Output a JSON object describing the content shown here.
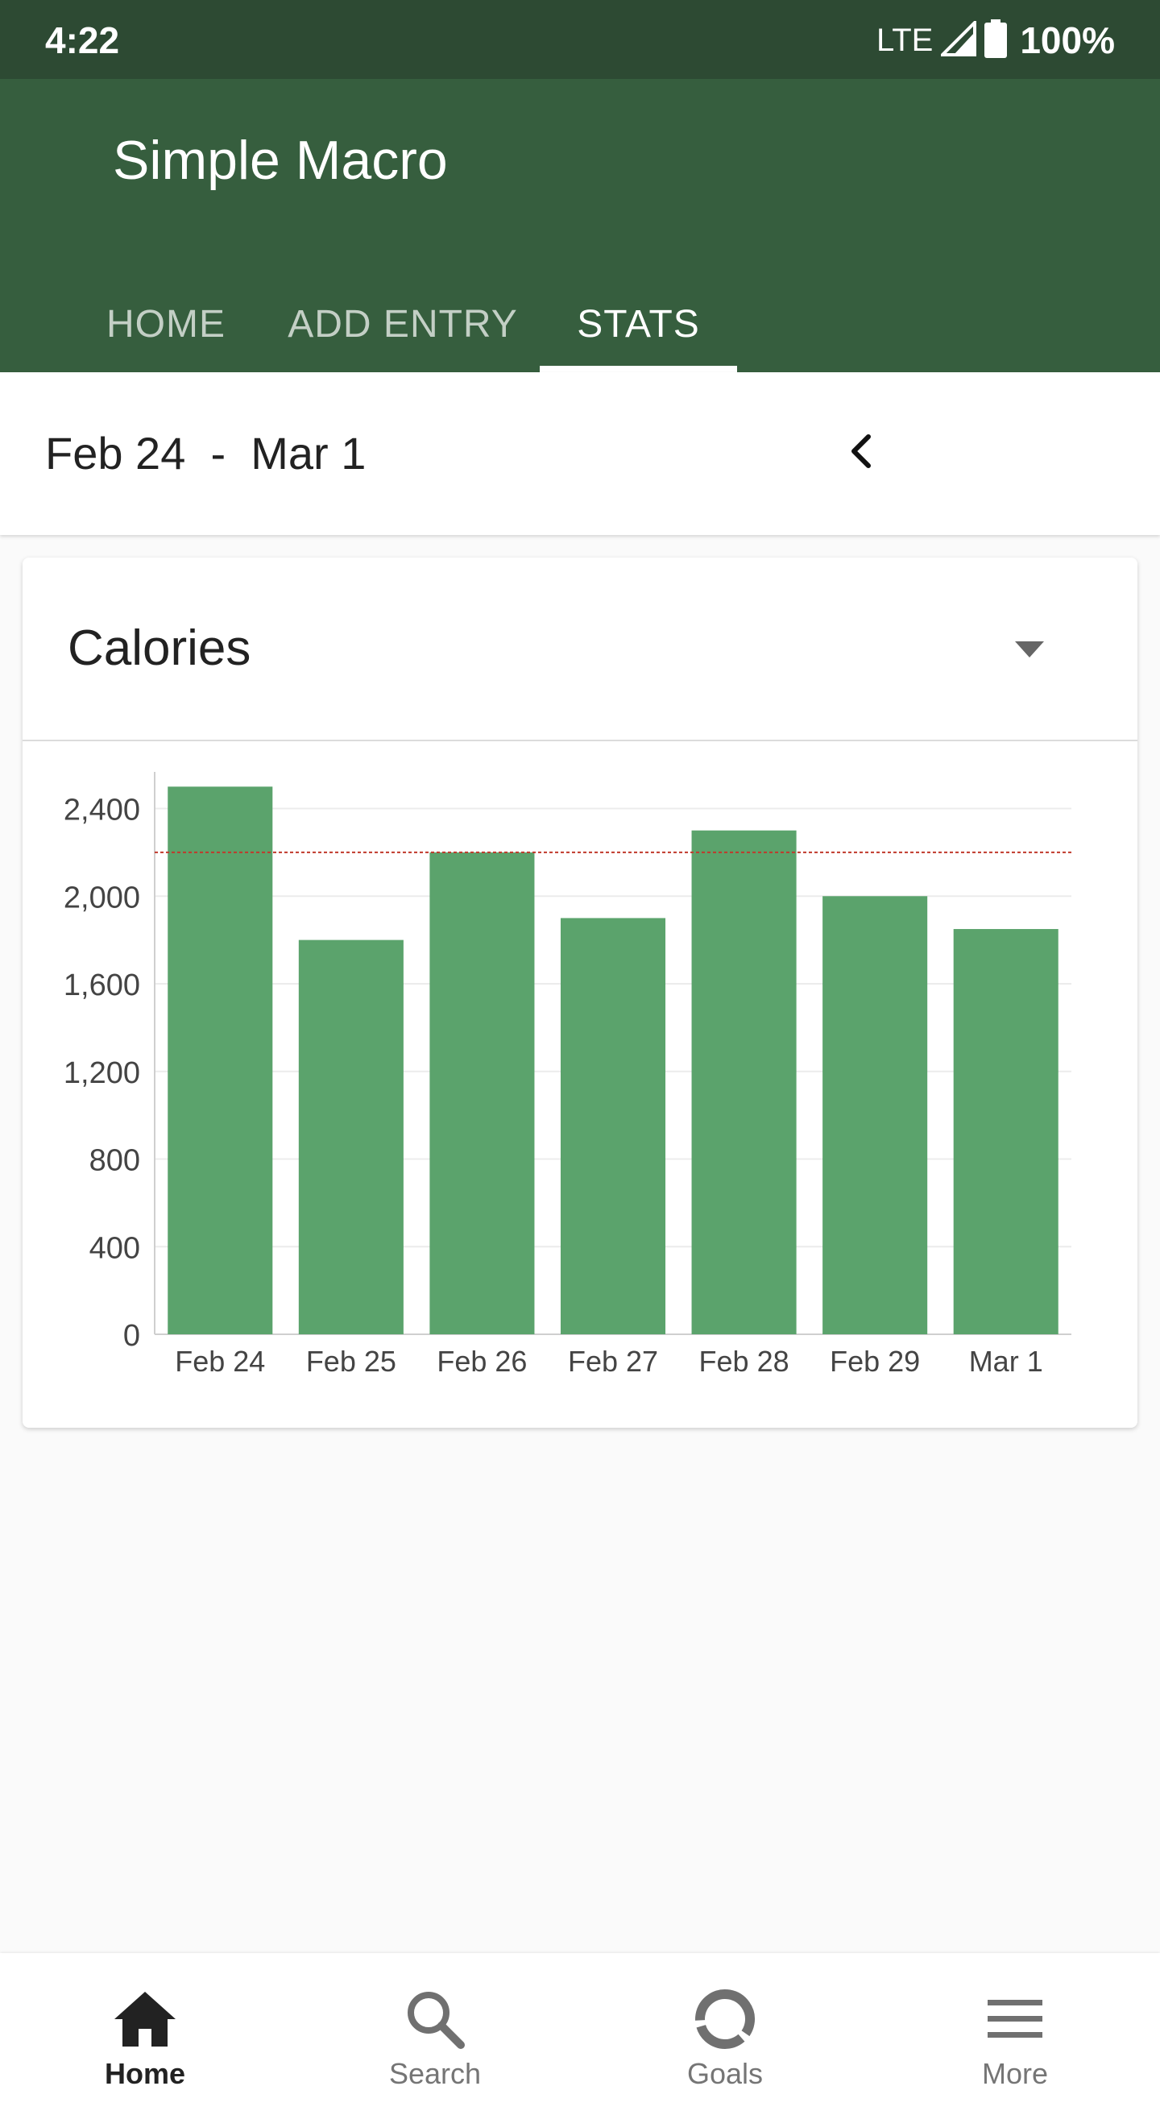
{
  "status_bar": {
    "time": "4:22",
    "network": "LTE",
    "battery": "100%"
  },
  "app": {
    "title": "Simple Macro",
    "primary_color": "#365e3e",
    "status_color": "#2d4a33"
  },
  "tabs": [
    {
      "label": "HOME",
      "active": false
    },
    {
      "label": "ADD ENTRY",
      "active": false
    },
    {
      "label": "STATS",
      "active": true
    }
  ],
  "range": {
    "text": "Feb 24  -  Mar 1",
    "prev_icon": "chevron-left-icon"
  },
  "card": {
    "metric": "Calories",
    "dropdown_icon": "caret-down-icon"
  },
  "chart_data": {
    "type": "bar",
    "categories": [
      "Feb 24",
      "Feb 25",
      "Feb 26",
      "Feb 27",
      "Feb 28",
      "Feb 29",
      "Mar 1"
    ],
    "values": [
      2500,
      1800,
      2200,
      1900,
      2300,
      2000,
      1850
    ],
    "yticks": [
      0,
      400,
      800,
      1200,
      1600,
      2000,
      2400
    ],
    "ytick_labels": [
      "0",
      "400",
      "800",
      "1,200",
      "1,600",
      "2,000",
      "2,400"
    ],
    "ylim": [
      0,
      2560
    ],
    "goal_line": 2200,
    "bar_color": "#5ba36c",
    "goal_line_color": "#c0392b",
    "grid": true
  },
  "bottom_nav": [
    {
      "label": "Home",
      "icon": "home-icon",
      "active": true
    },
    {
      "label": "Search",
      "icon": "search-icon",
      "active": false
    },
    {
      "label": "Goals",
      "icon": "goals-icon",
      "active": false
    },
    {
      "label": "More",
      "icon": "menu-icon",
      "active": false
    }
  ]
}
